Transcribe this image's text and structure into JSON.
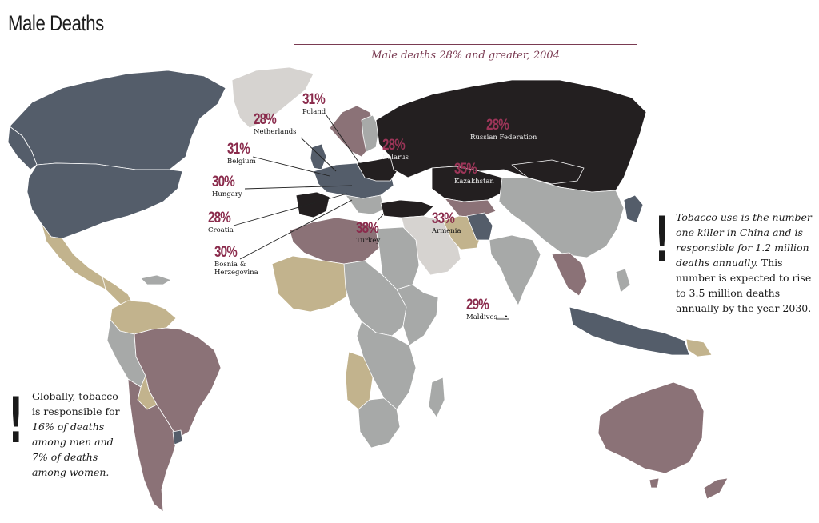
{
  "title": "Male Deaths",
  "legend": {
    "label": "Male deaths 28% and greater, 2004"
  },
  "colors": {
    "top_band": "#231f20",
    "slate": "#545d6a",
    "gray": "#a7a9a8",
    "mauve": "#8b7277",
    "tan": "#c2b38d",
    "light_gray": "#d6d3d0",
    "accent": "#8a2b4c"
  },
  "countries": [
    {
      "pct": "31%",
      "name": "Poland"
    },
    {
      "pct": "28%",
      "name": "Netherlands"
    },
    {
      "pct": "31%",
      "name": "Belgium"
    },
    {
      "pct": "30%",
      "name": "Hungary"
    },
    {
      "pct": "28%",
      "name": "Croatia"
    },
    {
      "pct": "30%",
      "name": "Bosnia & Herzegovina"
    },
    {
      "pct": "28%",
      "name": "Russian Federation"
    },
    {
      "pct": "28%",
      "name": "Belarus"
    },
    {
      "pct": "35%",
      "name": "Kazakhstan"
    },
    {
      "pct": "38%",
      "name": "Turkey"
    },
    {
      "pct": "33%",
      "name": "Armenia"
    },
    {
      "pct": "29%",
      "name": "Maldives"
    }
  ],
  "notes": {
    "china": {
      "italic": "Tobacco use is the number-one killer in China and is responsible for 1.2 million deaths annually.",
      "plain": "This number is expected to rise to 3.5 million deaths annually by the year 2030."
    },
    "global": {
      "plain1": "Globally, tobacco is responsible for",
      "italic1": "16% of deaths among men and",
      "italic2": "7% of deaths among women."
    }
  }
}
